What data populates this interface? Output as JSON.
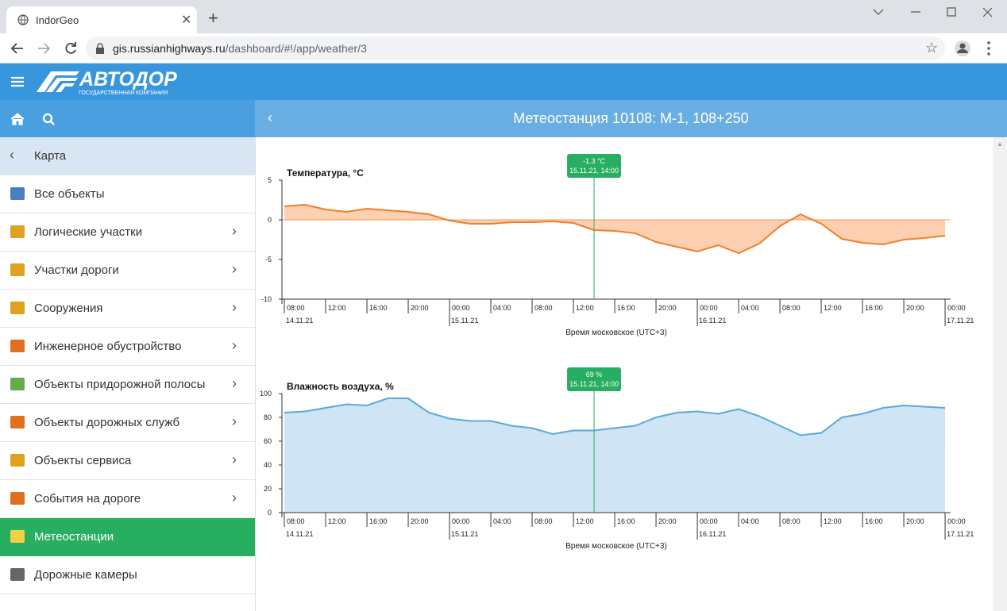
{
  "browser": {
    "tab_title": "IndorGeo",
    "url_host": "gis.russianhighways.ru",
    "url_path": "/dashboard/#!/app/weather/3"
  },
  "header": {
    "logo": "АВТОДОР",
    "logo_subtitle": "ГОСУДАРСТВЕННАЯ КОМПАНИЯ",
    "page_title": "Метеостанция 10108: М-1, 108+250"
  },
  "sidebar": {
    "back": "Карта",
    "items": [
      {
        "label": "Все объекты",
        "submenu": false,
        "active": false,
        "icon_color": "#4a7fc1"
      },
      {
        "label": "Логические участки",
        "submenu": true,
        "active": false,
        "icon_color": "#e0a020"
      },
      {
        "label": "Участки дороги",
        "submenu": true,
        "active": false,
        "icon_color": "#e0a020"
      },
      {
        "label": "Сооружения",
        "submenu": true,
        "active": false,
        "icon_color": "#e0a020"
      },
      {
        "label": "Инженерное обустройство",
        "submenu": true,
        "active": false,
        "icon_color": "#e07020"
      },
      {
        "label": "Объекты придорожной полосы",
        "submenu": true,
        "active": false,
        "icon_color": "#6aa84f"
      },
      {
        "label": "Объекты дорожных служб",
        "submenu": true,
        "active": false,
        "icon_color": "#e07020"
      },
      {
        "label": "Объекты сервиса",
        "submenu": true,
        "active": false,
        "icon_color": "#e0a020"
      },
      {
        "label": "События на дороге",
        "submenu": true,
        "active": false,
        "icon_color": "#e07020"
      },
      {
        "label": "Метеостанции",
        "submenu": false,
        "active": true,
        "icon_color": "#f5d040"
      },
      {
        "label": "Дорожные камеры",
        "submenu": false,
        "active": false,
        "icon_color": "#666666"
      }
    ]
  },
  "chart_data": [
    {
      "type": "area",
      "title": "Температура, °C",
      "xlabel": "Время московское (UTC+3)",
      "color": "#f07f2a",
      "fill": "#fdd0b2",
      "baseline": 0,
      "x": [
        "14.11.21 08:00",
        "14.11.21 10:00",
        "14.11.21 12:00",
        "14.11.21 14:00",
        "14.11.21 16:00",
        "14.11.21 18:00",
        "14.11.21 20:00",
        "14.11.21 22:00",
        "15.11.21 00:00",
        "15.11.21 02:00",
        "15.11.21 04:00",
        "15.11.21 06:00",
        "15.11.21 08:00",
        "15.11.21 10:00",
        "15.11.21 12:00",
        "15.11.21 14:00",
        "15.11.21 16:00",
        "15.11.21 18:00",
        "15.11.21 20:00",
        "15.11.21 22:00",
        "16.11.21 00:00",
        "16.11.21 02:00",
        "16.11.21 04:00",
        "16.11.21 06:00",
        "16.11.21 08:00",
        "16.11.21 10:00",
        "16.11.21 12:00",
        "16.11.21 14:00",
        "16.11.21 16:00",
        "16.11.21 18:00",
        "16.11.21 20:00",
        "16.11.21 22:00",
        "17.11.21 00:00"
      ],
      "values": [
        1.7,
        1.9,
        1.3,
        1.0,
        1.4,
        1.2,
        1.0,
        0.7,
        -0.1,
        -0.5,
        -0.5,
        -0.3,
        -0.3,
        -0.2,
        -0.4,
        -1.3,
        -1.4,
        -1.7,
        -2.8,
        -3.4,
        -4.0,
        -3.2,
        -4.2,
        -3.0,
        -0.8,
        0.7,
        -0.5,
        -2.4,
        -2.9,
        -3.1,
        -2.5,
        -2.3,
        -2.0
      ],
      "xlim": [
        "14.11.21 07:46",
        "17.11.21 00:32"
      ],
      "ylim": [
        -10,
        5
      ],
      "yticks": [
        -10,
        -5,
        0,
        5
      ],
      "xticks": [
        {
          "value": "14.11.21 08:00",
          "label": "08:00"
        },
        {
          "value": "14.11.21 12:00",
          "label": "12:00"
        },
        {
          "value": "14.11.21 16:00",
          "label": "16:00"
        },
        {
          "value": "14.11.21 20:00",
          "label": "20:00"
        },
        {
          "value": "15.11.21 00:00",
          "label": "00:00"
        },
        {
          "value": "15.11.21 04:00",
          "label": "04:00"
        },
        {
          "value": "15.11.21 08:00",
          "label": "08:00"
        },
        {
          "value": "15.11.21 12:00",
          "label": "12:00"
        },
        {
          "value": "15.11.21 16:00",
          "label": "16:00"
        },
        {
          "value": "15.11.21 20:00",
          "label": "20:00"
        },
        {
          "value": "16.11.21 00:00",
          "label": "00:00"
        },
        {
          "value": "16.11.21 04:00",
          "label": "04:00"
        },
        {
          "value": "16.11.21 08:00",
          "label": "08:00"
        },
        {
          "value": "16.11.21 12:00",
          "label": "12:00"
        },
        {
          "value": "16.11.21 16:00",
          "label": "16:00"
        },
        {
          "value": "16.11.21 20:00",
          "label": "20:00"
        },
        {
          "value": "17.11.21 00:00",
          "label": "00:00"
        }
      ],
      "date_labels": [
        {
          "value": "14.11.21 08:00",
          "label": "14.11.21"
        },
        {
          "value": "15.11.21 00:00",
          "label": "15.11.21"
        },
        {
          "value": "16.11.21 00:00",
          "label": "16.11.21"
        },
        {
          "value": "17.11.21 00:00",
          "label": "17.11.21"
        }
      ],
      "tooltip": {
        "x": "15.11.21 14:00",
        "value": -1.3,
        "label": "-1.3 °C",
        "time_label": "15.11.21, 14:00",
        "color": "#27ae60"
      }
    },
    {
      "type": "area",
      "title": "Влажность воздуха, %",
      "xlabel": "Время московское (UTC+3)",
      "color": "#5aa9dc",
      "fill": "#cfe4f4",
      "baseline": 0,
      "x": [
        "14.11.21 08:00",
        "14.11.21 10:00",
        "14.11.21 12:00",
        "14.11.21 14:00",
        "14.11.21 16:00",
        "14.11.21 18:00",
        "14.11.21 20:00",
        "14.11.21 22:00",
        "15.11.21 00:00",
        "15.11.21 02:00",
        "15.11.21 04:00",
        "15.11.21 06:00",
        "15.11.21 08:00",
        "15.11.21 10:00",
        "15.11.21 12:00",
        "15.11.21 14:00",
        "15.11.21 16:00",
        "15.11.21 18:00",
        "15.11.21 20:00",
        "15.11.21 22:00",
        "16.11.21 00:00",
        "16.11.21 02:00",
        "16.11.21 04:00",
        "16.11.21 06:00",
        "16.11.21 08:00",
        "16.11.21 10:00",
        "16.11.21 12:00",
        "16.11.21 14:00",
        "16.11.21 16:00",
        "16.11.21 18:00",
        "16.11.21 20:00",
        "16.11.21 22:00",
        "17.11.21 00:00"
      ],
      "values": [
        84,
        85,
        88,
        91,
        90,
        96,
        96,
        84,
        79,
        77,
        77,
        73,
        71,
        66,
        69,
        69,
        71,
        73,
        80,
        84,
        85,
        83,
        87,
        81,
        73,
        65,
        67,
        80,
        83,
        88,
        90,
        89,
        88
      ],
      "xlim": [
        "14.11.21 07:46",
        "17.11.21 00:32"
      ],
      "ylim": [
        0,
        100
      ],
      "yticks": [
        0,
        20,
        40,
        60,
        80,
        100
      ],
      "xticks": [
        {
          "value": "14.11.21 08:00",
          "label": "08:00"
        },
        {
          "value": "14.11.21 12:00",
          "label": "12:00"
        },
        {
          "value": "14.11.21 16:00",
          "label": "16:00"
        },
        {
          "value": "14.11.21 20:00",
          "label": "20:00"
        },
        {
          "value": "15.11.21 00:00",
          "label": "00:00"
        },
        {
          "value": "15.11.21 04:00",
          "label": "04:00"
        },
        {
          "value": "15.11.21 08:00",
          "label": "08:00"
        },
        {
          "value": "15.11.21 12:00",
          "label": "12:00"
        },
        {
          "value": "15.11.21 16:00",
          "label": "16:00"
        },
        {
          "value": "15.11.21 20:00",
          "label": "20:00"
        },
        {
          "value": "16.11.21 00:00",
          "label": "00:00"
        },
        {
          "value": "16.11.21 04:00",
          "label": "04:00"
        },
        {
          "value": "16.11.21 08:00",
          "label": "08:00"
        },
        {
          "value": "16.11.21 12:00",
          "label": "12:00"
        },
        {
          "value": "16.11.21 16:00",
          "label": "16:00"
        },
        {
          "value": "16.11.21 20:00",
          "label": "20:00"
        },
        {
          "value": "17.11.21 00:00",
          "label": "00:00"
        }
      ],
      "date_labels": [
        {
          "value": "14.11.21 08:00",
          "label": "14.11.21"
        },
        {
          "value": "15.11.21 00:00",
          "label": "15.11.21"
        },
        {
          "value": "16.11.21 00:00",
          "label": "16.11.21"
        },
        {
          "value": "17.11.21 00:00",
          "label": "17.11.21"
        }
      ],
      "tooltip": {
        "x": "15.11.21 14:00",
        "value": 69,
        "label": "69 %",
        "time_label": "15.11.21, 14:00",
        "color": "#27ae60"
      }
    }
  ]
}
